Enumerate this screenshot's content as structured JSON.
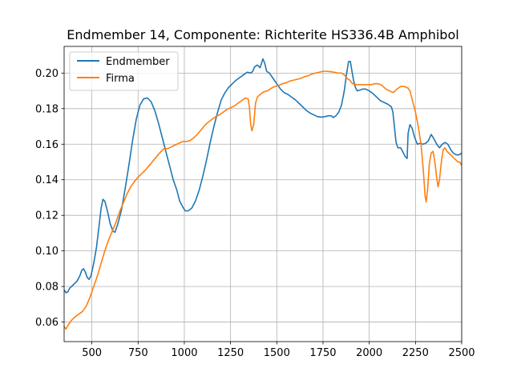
{
  "chart_data": {
    "type": "line",
    "title": "Endmember 14, Componente: Richterite HS336.4B Amphibol",
    "xlabel": "",
    "ylabel": "",
    "xlim": [
      350,
      2500
    ],
    "ylim": [
      0.049,
      0.215
    ],
    "xticks": [
      500,
      750,
      1000,
      1250,
      1500,
      1750,
      2000,
      2250,
      2500
    ],
    "yticks": [
      0.06,
      0.08,
      0.1,
      0.12,
      0.14,
      0.16,
      0.18,
      0.2
    ],
    "ytick_labels": [
      "0.06",
      "0.08",
      "0.10",
      "0.12",
      "0.14",
      "0.16",
      "0.18",
      "0.20"
    ],
    "grid": true,
    "legend": {
      "placement": "upper-left"
    },
    "series": [
      {
        "name": "Endmember",
        "color": "#1f77b4",
        "points": [
          [
            350,
            0.078
          ],
          [
            360,
            0.0765
          ],
          [
            370,
            0.077
          ],
          [
            380,
            0.079
          ],
          [
            400,
            0.081
          ],
          [
            420,
            0.083
          ],
          [
            435,
            0.086
          ],
          [
            445,
            0.089
          ],
          [
            455,
            0.09
          ],
          [
            465,
            0.088
          ],
          [
            475,
            0.085
          ],
          [
            485,
            0.084
          ],
          [
            495,
            0.086
          ],
          [
            510,
            0.093
          ],
          [
            525,
            0.102
          ],
          [
            540,
            0.115
          ],
          [
            550,
            0.124
          ],
          [
            560,
            0.129
          ],
          [
            570,
            0.128
          ],
          [
            585,
            0.122
          ],
          [
            600,
            0.115
          ],
          [
            615,
            0.111
          ],
          [
            625,
            0.1105
          ],
          [
            640,
            0.115
          ],
          [
            660,
            0.123
          ],
          [
            680,
            0.135
          ],
          [
            700,
            0.148
          ],
          [
            720,
            0.162
          ],
          [
            740,
            0.174
          ],
          [
            760,
            0.182
          ],
          [
            780,
            0.1855
          ],
          [
            800,
            0.186
          ],
          [
            820,
            0.184
          ],
          [
            840,
            0.179
          ],
          [
            860,
            0.172
          ],
          [
            880,
            0.164
          ],
          [
            900,
            0.156
          ],
          [
            920,
            0.148
          ],
          [
            940,
            0.14
          ],
          [
            960,
            0.134
          ],
          [
            975,
            0.128
          ],
          [
            990,
            0.125
          ],
          [
            1005,
            0.1225
          ],
          [
            1020,
            0.1225
          ],
          [
            1040,
            0.124
          ],
          [
            1060,
            0.128
          ],
          [
            1080,
            0.134
          ],
          [
            1100,
            0.142
          ],
          [
            1120,
            0.151
          ],
          [
            1140,
            0.161
          ],
          [
            1160,
            0.17
          ],
          [
            1180,
            0.178
          ],
          [
            1200,
            0.185
          ],
          [
            1220,
            0.189
          ],
          [
            1240,
            0.192
          ],
          [
            1260,
            0.194
          ],
          [
            1280,
            0.196
          ],
          [
            1300,
            0.1975
          ],
          [
            1320,
            0.199
          ],
          [
            1340,
            0.2005
          ],
          [
            1360,
            0.2
          ],
          [
            1370,
            0.201
          ],
          [
            1380,
            0.2035
          ],
          [
            1395,
            0.2045
          ],
          [
            1410,
            0.203
          ],
          [
            1425,
            0.208
          ],
          [
            1435,
            0.2055
          ],
          [
            1445,
            0.201
          ],
          [
            1460,
            0.2
          ],
          [
            1480,
            0.197
          ],
          [
            1500,
            0.194
          ],
          [
            1520,
            0.191
          ],
          [
            1540,
            0.189
          ],
          [
            1560,
            0.188
          ],
          [
            1580,
            0.1865
          ],
          [
            1600,
            0.185
          ],
          [
            1620,
            0.183
          ],
          [
            1640,
            0.181
          ],
          [
            1660,
            0.179
          ],
          [
            1680,
            0.1775
          ],
          [
            1700,
            0.1765
          ],
          [
            1720,
            0.1755
          ],
          [
            1740,
            0.1752
          ],
          [
            1760,
            0.1755
          ],
          [
            1780,
            0.176
          ],
          [
            1795,
            0.176
          ],
          [
            1805,
            0.175
          ],
          [
            1820,
            0.176
          ],
          [
            1835,
            0.178
          ],
          [
            1850,
            0.182
          ],
          [
            1865,
            0.19
          ],
          [
            1878,
            0.2
          ],
          [
            1888,
            0.2065
          ],
          [
            1898,
            0.2065
          ],
          [
            1905,
            0.202
          ],
          [
            1915,
            0.196
          ],
          [
            1925,
            0.192
          ],
          [
            1935,
            0.19
          ],
          [
            1950,
            0.1905
          ],
          [
            1965,
            0.191
          ],
          [
            1980,
            0.191
          ],
          [
            2000,
            0.19
          ],
          [
            2020,
            0.1885
          ],
          [
            2040,
            0.1865
          ],
          [
            2060,
            0.1845
          ],
          [
            2080,
            0.1835
          ],
          [
            2100,
            0.1825
          ],
          [
            2120,
            0.181
          ],
          [
            2128,
            0.178
          ],
          [
            2138,
            0.168
          ],
          [
            2145,
            0.161
          ],
          [
            2155,
            0.158
          ],
          [
            2170,
            0.158
          ],
          [
            2180,
            0.156
          ],
          [
            2195,
            0.153
          ],
          [
            2205,
            0.152
          ],
          [
            2210,
            0.166
          ],
          [
            2220,
            0.171
          ],
          [
            2232,
            0.169
          ],
          [
            2245,
            0.164
          ],
          [
            2260,
            0.16
          ],
          [
            2275,
            0.1605
          ],
          [
            2290,
            0.16
          ],
          [
            2305,
            0.1605
          ],
          [
            2320,
            0.162
          ],
          [
            2335,
            0.1655
          ],
          [
            2350,
            0.163
          ],
          [
            2365,
            0.16
          ],
          [
            2380,
            0.158
          ],
          [
            2395,
            0.16
          ],
          [
            2410,
            0.161
          ],
          [
            2425,
            0.16
          ],
          [
            2440,
            0.157
          ],
          [
            2455,
            0.155
          ],
          [
            2470,
            0.154
          ],
          [
            2485,
            0.154
          ],
          [
            2500,
            0.155
          ]
        ]
      },
      {
        "name": "Firma",
        "color": "#ff7f0e",
        "points": [
          [
            350,
            0.0575
          ],
          [
            360,
            0.056
          ],
          [
            370,
            0.058
          ],
          [
            390,
            0.061
          ],
          [
            410,
            0.063
          ],
          [
            430,
            0.0645
          ],
          [
            450,
            0.066
          ],
          [
            470,
            0.069
          ],
          [
            490,
            0.074
          ],
          [
            510,
            0.08
          ],
          [
            530,
            0.086
          ],
          [
            550,
            0.093
          ],
          [
            570,
            0.1
          ],
          [
            590,
            0.106
          ],
          [
            610,
            0.111
          ],
          [
            630,
            0.116
          ],
          [
            650,
            0.122
          ],
          [
            670,
            0.127
          ],
          [
            690,
            0.132
          ],
          [
            710,
            0.136
          ],
          [
            730,
            0.139
          ],
          [
            750,
            0.1415
          ],
          [
            770,
            0.1435
          ],
          [
            790,
            0.1455
          ],
          [
            810,
            0.148
          ],
          [
            830,
            0.1505
          ],
          [
            850,
            0.153
          ],
          [
            870,
            0.1555
          ],
          [
            890,
            0.1575
          ],
          [
            910,
            0.1575
          ],
          [
            930,
            0.1585
          ],
          [
            950,
            0.1595
          ],
          [
            970,
            0.1605
          ],
          [
            990,
            0.1615
          ],
          [
            1010,
            0.1615
          ],
          [
            1030,
            0.162
          ],
          [
            1050,
            0.1635
          ],
          [
            1070,
            0.1655
          ],
          [
            1090,
            0.168
          ],
          [
            1110,
            0.1705
          ],
          [
            1130,
            0.1725
          ],
          [
            1150,
            0.174
          ],
          [
            1170,
            0.1755
          ],
          [
            1190,
            0.1765
          ],
          [
            1210,
            0.178
          ],
          [
            1230,
            0.1795
          ],
          [
            1250,
            0.1805
          ],
          [
            1270,
            0.1815
          ],
          [
            1290,
            0.183
          ],
          [
            1310,
            0.1845
          ],
          [
            1330,
            0.186
          ],
          [
            1345,
            0.1855
          ],
          [
            1352,
            0.181
          ],
          [
            1358,
            0.172
          ],
          [
            1365,
            0.1675
          ],
          [
            1375,
            0.171
          ],
          [
            1385,
            0.183
          ],
          [
            1395,
            0.1865
          ],
          [
            1410,
            0.188
          ],
          [
            1430,
            0.1895
          ],
          [
            1450,
            0.19
          ],
          [
            1470,
            0.1915
          ],
          [
            1490,
            0.1925
          ],
          [
            1510,
            0.193
          ],
          [
            1530,
            0.194
          ],
          [
            1550,
            0.1945
          ],
          [
            1570,
            0.1955
          ],
          [
            1590,
            0.196
          ],
          [
            1610,
            0.1965
          ],
          [
            1630,
            0.197
          ],
          [
            1650,
            0.198
          ],
          [
            1670,
            0.1985
          ],
          [
            1690,
            0.1995
          ],
          [
            1710,
            0.2
          ],
          [
            1730,
            0.2005
          ],
          [
            1750,
            0.201
          ],
          [
            1770,
            0.201
          ],
          [
            1790,
            0.2008
          ],
          [
            1810,
            0.2005
          ],
          [
            1830,
            0.2
          ],
          [
            1850,
            0.2
          ],
          [
            1865,
            0.199
          ],
          [
            1880,
            0.197
          ],
          [
            1895,
            0.196
          ],
          [
            1910,
            0.194
          ],
          [
            1930,
            0.1935
          ],
          [
            1950,
            0.1935
          ],
          [
            1970,
            0.1935
          ],
          [
            1990,
            0.1935
          ],
          [
            2010,
            0.1935
          ],
          [
            2030,
            0.194
          ],
          [
            2050,
            0.194
          ],
          [
            2070,
            0.193
          ],
          [
            2090,
            0.191
          ],
          [
            2110,
            0.19
          ],
          [
            2130,
            0.189
          ],
          [
            2150,
            0.191
          ],
          [
            2170,
            0.1925
          ],
          [
            2190,
            0.1925
          ],
          [
            2210,
            0.1915
          ],
          [
            2220,
            0.19
          ],
          [
            2235,
            0.184
          ],
          [
            2250,
            0.178
          ],
          [
            2265,
            0.17
          ],
          [
            2280,
            0.16
          ],
          [
            2292,
            0.146
          ],
          [
            2302,
            0.131
          ],
          [
            2308,
            0.1275
          ],
          [
            2316,
            0.135
          ],
          [
            2325,
            0.149
          ],
          [
            2335,
            0.155
          ],
          [
            2345,
            0.156
          ],
          [
            2355,
            0.15
          ],
          [
            2365,
            0.141
          ],
          [
            2372,
            0.136
          ],
          [
            2380,
            0.14
          ],
          [
            2390,
            0.15
          ],
          [
            2400,
            0.157
          ],
          [
            2410,
            0.158
          ],
          [
            2420,
            0.156
          ],
          [
            2430,
            0.155
          ],
          [
            2440,
            0.154
          ],
          [
            2450,
            0.153
          ],
          [
            2460,
            0.152
          ],
          [
            2470,
            0.151
          ],
          [
            2480,
            0.15
          ],
          [
            2490,
            0.15
          ],
          [
            2500,
            0.148
          ]
        ]
      }
    ]
  }
}
